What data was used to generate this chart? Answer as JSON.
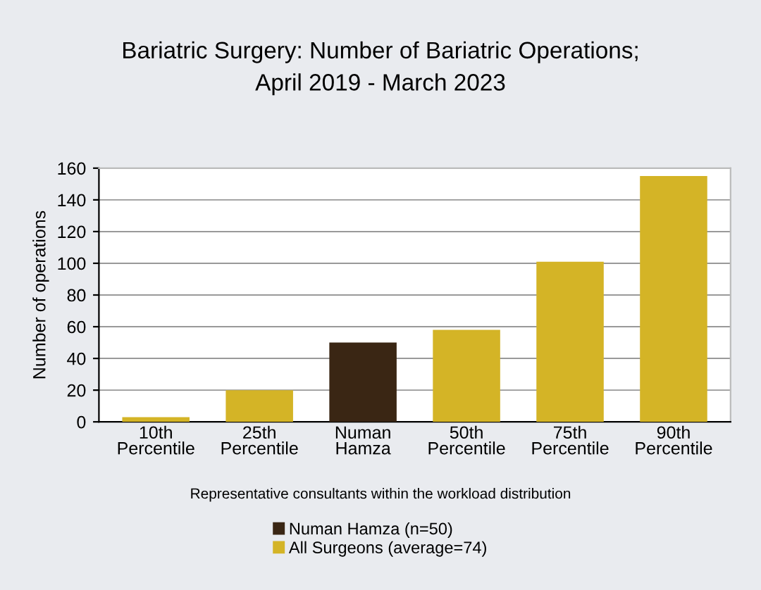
{
  "chart_data": {
    "type": "bar",
    "title": "Bariatric Surgery: Number of Bariatric Operations;\nApril 2019 - March 2023",
    "xlabel": "Representative consultants within the workload distribution",
    "ylabel": "Number of operations",
    "categories": [
      "10th\nPercentile",
      "25th\nPercentile",
      "Numan\nHamza",
      "50th\nPercentile",
      "75th\nPercentile",
      "90th\nPercentile"
    ],
    "series": [
      {
        "name": "Numan Hamza (n=50)",
        "color": "#3a2614",
        "values": [
          null,
          null,
          50,
          null,
          null,
          null
        ]
      },
      {
        "name": "All Surgeons (average=74)",
        "color": "#d4b426",
        "values": [
          3,
          20,
          null,
          58,
          101,
          155
        ]
      }
    ],
    "ylim": [
      0,
      160
    ],
    "yticks": [
      0,
      20,
      40,
      60,
      80,
      100,
      120,
      140,
      160
    ],
    "grid": "y",
    "legend": "bottom"
  }
}
